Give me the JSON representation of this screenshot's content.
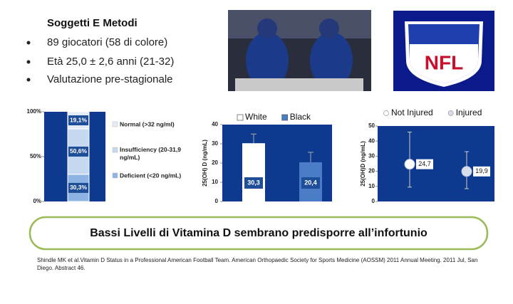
{
  "header": {
    "title": "Soggetti E Metodi"
  },
  "bullets": [
    "89 giocatori  (58 di colore)",
    "Età 25,0 ± 2,6 anni (21-32)",
    "Valutazione pre-stagionale"
  ],
  "logo": {
    "text": "NFL"
  },
  "chart_data": [
    {
      "type": "stacked_bar",
      "categories": [
        null
      ],
      "legend": "right",
      "ylim": [
        0,
        100
      ],
      "yticks": [
        {
          "value": 0,
          "label": "0%"
        },
        {
          "value": 50,
          "label": "50%"
        },
        {
          "value": 100,
          "label": "100%"
        }
      ],
      "series": [
        {
          "name": "Deficient (<20 ng/mL)",
          "color": "#8eb4e3",
          "values": [
            30.3
          ],
          "value_labels": [
            "30,3%"
          ]
        },
        {
          "name": "Insufficiency (20-31,9 ng/mL)",
          "color": "#c6d9f1",
          "values": [
            50.6
          ],
          "value_labels": [
            "50,6%"
          ]
        },
        {
          "name": "Normal (>32 ng/ml)",
          "color": "#e4ecf6",
          "values": [
            19.1
          ],
          "value_labels": [
            "19,1%"
          ]
        }
      ]
    },
    {
      "type": "bar",
      "categories": [
        null
      ],
      "legend": "top",
      "y_label": "25(OH) D (ng/mL)",
      "ylim": [
        0,
        40
      ],
      "yticks": [
        0,
        10,
        20,
        30,
        40
      ],
      "series": [
        {
          "name": "White",
          "color": "#ffffff",
          "values": [
            30.3
          ],
          "errors": [
            4.8
          ],
          "value_labels": [
            "30,3"
          ]
        },
        {
          "name": "Black",
          "color": "#4a7cc7",
          "values": [
            20.4
          ],
          "errors": [
            5.2
          ],
          "value_labels": [
            "20,4"
          ]
        }
      ]
    },
    {
      "type": "dot",
      "categories": [
        null
      ],
      "legend": "top",
      "y_label": "25(OH)D (ng/mL)",
      "ylim": [
        0,
        50
      ],
      "yticks": [
        0,
        10,
        20,
        30,
        40,
        50
      ],
      "series": [
        {
          "name": "Not Injured",
          "color": "#ffffff",
          "values": [
            24.7
          ],
          "whisker_low": [
            9.5
          ],
          "whisker_high": [
            46
          ],
          "value_labels": [
            "24,7"
          ]
        },
        {
          "name": "Injured",
          "color": "#d9dfea",
          "values": [
            19.9
          ],
          "whisker_low": [
            8.5
          ],
          "whisker_high": [
            33
          ],
          "value_labels": [
            "19,9"
          ]
        }
      ]
    }
  ],
  "conclusion": "Bassi Livelli di Vitamina D sembrano predisporre all’infortunio",
  "citation": "Shindle MK et al.Vitamin D Status in a Professional American Football Team. American Orthopaedic Society for Sports Medicine (AOSSM) 2011 Annual Meeting. 2011 Jul, San Diego. Abstract 46."
}
